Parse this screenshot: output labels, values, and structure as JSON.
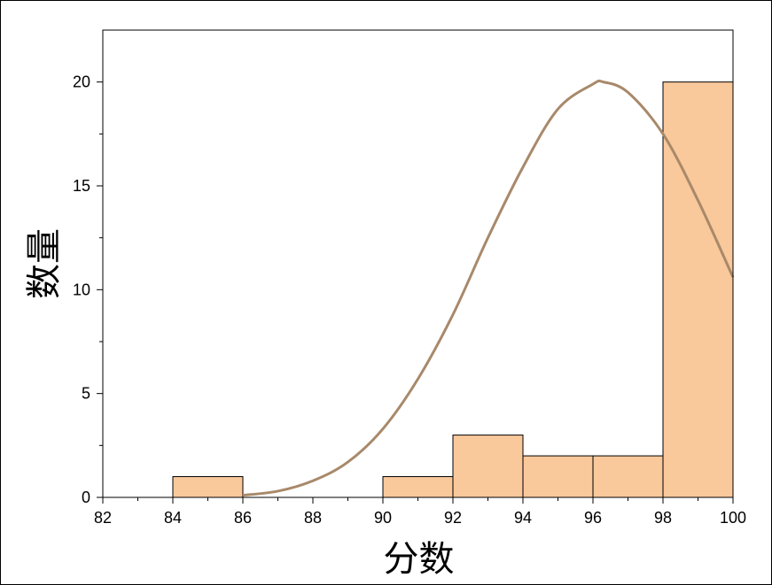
{
  "chart_data": {
    "type": "bar",
    "subtype": "histogram-with-normal-fit",
    "title": "",
    "xlabel": "分数",
    "ylabel": "数量",
    "xlim": [
      82,
      100
    ],
    "ylim": [
      0,
      22.5
    ],
    "xticks": [
      82,
      84,
      86,
      88,
      90,
      92,
      94,
      96,
      98,
      100
    ],
    "yticks": [
      0,
      5,
      10,
      15,
      20
    ],
    "bins": [
      {
        "start": 84,
        "end": 86,
        "count": 1
      },
      {
        "start": 86,
        "end": 88,
        "count": 0
      },
      {
        "start": 88,
        "end": 90,
        "count": 0
      },
      {
        "start": 90,
        "end": 92,
        "count": 1
      },
      {
        "start": 92,
        "end": 94,
        "count": 3
      },
      {
        "start": 94,
        "end": 96,
        "count": 2
      },
      {
        "start": 96,
        "end": 98,
        "count": 2
      },
      {
        "start": 98,
        "end": 100,
        "count": 20
      }
    ],
    "fit_curve": {
      "type": "normal",
      "x_range": [
        86,
        100
      ],
      "x": [
        86,
        87,
        88,
        89,
        90,
        91,
        92,
        93,
        94,
        95,
        96,
        96.3,
        97,
        98,
        99,
        100
      ],
      "y": [
        0.1,
        0.3,
        0.8,
        1.7,
        3.3,
        5.7,
        8.8,
        12.5,
        15.9,
        18.7,
        19.9,
        20.0,
        19.5,
        17.5,
        14.3,
        10.6
      ]
    },
    "grid": false,
    "legend": "none",
    "colors": {
      "bar_fill": "#f9c89b",
      "bar_stroke": "#000000",
      "curve": "#a8896a",
      "axis": "#000000"
    }
  }
}
